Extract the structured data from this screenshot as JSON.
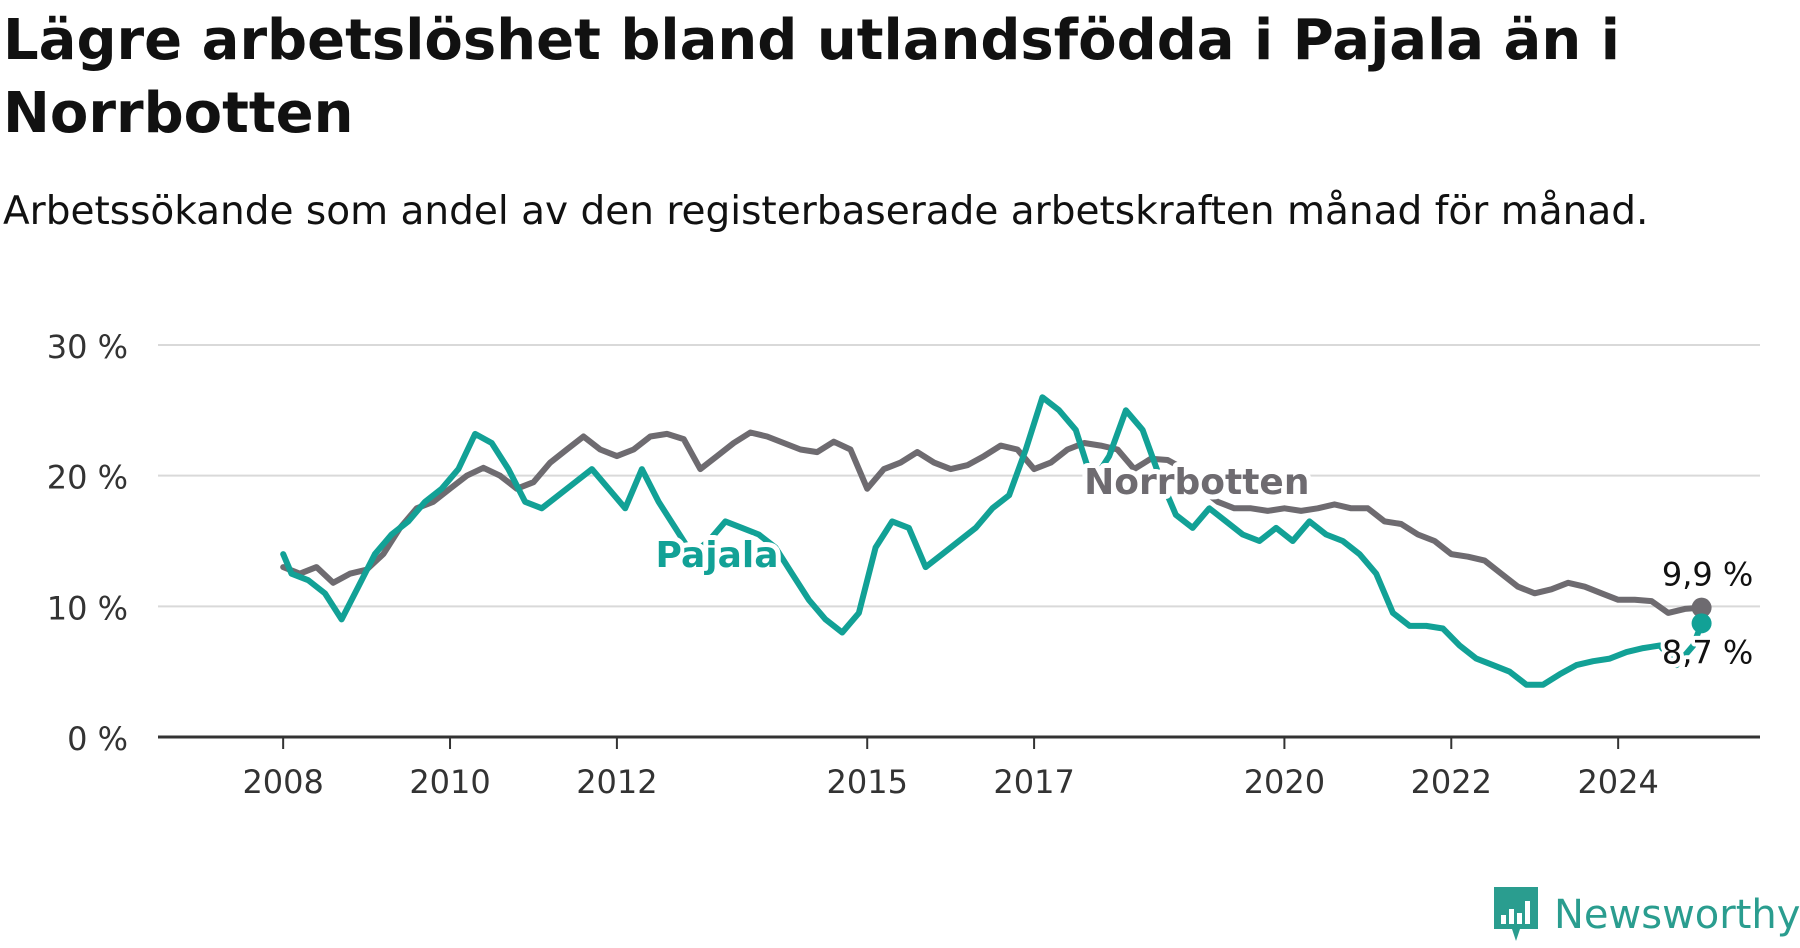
{
  "title": "Lägre arbetslöshet bland utlandsfödda i Pajala än i Norrbotten",
  "subtitle": "Arbetssökande som andel av den registerbaserade arbetskraften månad för månad.",
  "brand": {
    "name": "Newsworthy",
    "icon": "newsworthy-logo-icon",
    "color": "#2a9d8f"
  },
  "chart_data": {
    "type": "line",
    "x_unit": "year",
    "xlim": [
      2006.5,
      2025.7
    ],
    "ylim": [
      0,
      30
    ],
    "y_ticks": [
      0,
      10,
      20,
      30
    ],
    "y_tick_labels": [
      "0 %",
      "10 %",
      "20 %",
      "30 %"
    ],
    "x_ticks": [
      2008,
      2010,
      2012,
      2015,
      2017,
      2020,
      2022,
      2024
    ],
    "x_tick_labels": [
      "2008",
      "2010",
      "2012",
      "2015",
      "2017",
      "2020",
      "2022",
      "2024"
    ],
    "grid": true,
    "series": [
      {
        "name": "Norrbotten",
        "color": "#6e6b70",
        "label_position": [
          2018.95,
          18.6
        ],
        "end_label": "9,9 %",
        "points": [
          [
            2008.0,
            13.0
          ],
          [
            2008.2,
            12.5
          ],
          [
            2008.4,
            13.0
          ],
          [
            2008.6,
            11.8
          ],
          [
            2008.8,
            12.5
          ],
          [
            2009.0,
            12.8
          ],
          [
            2009.2,
            14.0
          ],
          [
            2009.4,
            16.0
          ],
          [
            2009.6,
            17.5
          ],
          [
            2009.8,
            18.0
          ],
          [
            2010.0,
            19.0
          ],
          [
            2010.2,
            20.0
          ],
          [
            2010.4,
            20.6
          ],
          [
            2010.6,
            20.0
          ],
          [
            2010.8,
            19.0
          ],
          [
            2011.0,
            19.5
          ],
          [
            2011.2,
            21.0
          ],
          [
            2011.4,
            22.0
          ],
          [
            2011.6,
            23.0
          ],
          [
            2011.8,
            22.0
          ],
          [
            2012.0,
            21.5
          ],
          [
            2012.2,
            22.0
          ],
          [
            2012.4,
            23.0
          ],
          [
            2012.6,
            23.2
          ],
          [
            2012.8,
            22.8
          ],
          [
            2013.0,
            20.5
          ],
          [
            2013.2,
            21.5
          ],
          [
            2013.4,
            22.5
          ],
          [
            2013.6,
            23.3
          ],
          [
            2013.8,
            23.0
          ],
          [
            2014.0,
            22.5
          ],
          [
            2014.2,
            22.0
          ],
          [
            2014.4,
            21.8
          ],
          [
            2014.6,
            22.6
          ],
          [
            2014.8,
            22.0
          ],
          [
            2015.0,
            19.0
          ],
          [
            2015.2,
            20.5
          ],
          [
            2015.4,
            21.0
          ],
          [
            2015.6,
            21.8
          ],
          [
            2015.8,
            21.0
          ],
          [
            2016.0,
            20.5
          ],
          [
            2016.2,
            20.8
          ],
          [
            2016.4,
            21.5
          ],
          [
            2016.6,
            22.3
          ],
          [
            2016.8,
            22.0
          ],
          [
            2017.0,
            20.5
          ],
          [
            2017.2,
            21.0
          ],
          [
            2017.4,
            22.0
          ],
          [
            2017.6,
            22.5
          ],
          [
            2017.8,
            22.3
          ],
          [
            2018.0,
            22.0
          ],
          [
            2018.2,
            20.5
          ],
          [
            2018.4,
            21.3
          ],
          [
            2018.6,
            21.2
          ],
          [
            2018.8,
            20.5
          ],
          [
            2019.0,
            19.0
          ],
          [
            2019.2,
            18.0
          ],
          [
            2019.4,
            17.5
          ],
          [
            2019.6,
            17.5
          ],
          [
            2019.8,
            17.3
          ],
          [
            2020.0,
            17.5
          ],
          [
            2020.2,
            17.3
          ],
          [
            2020.4,
            17.5
          ],
          [
            2020.6,
            17.8
          ],
          [
            2020.8,
            17.5
          ],
          [
            2021.0,
            17.5
          ],
          [
            2021.2,
            16.5
          ],
          [
            2021.4,
            16.3
          ],
          [
            2021.6,
            15.5
          ],
          [
            2021.8,
            15.0
          ],
          [
            2022.0,
            14.0
          ],
          [
            2022.2,
            13.8
          ],
          [
            2022.4,
            13.5
          ],
          [
            2022.6,
            12.5
          ],
          [
            2022.8,
            11.5
          ],
          [
            2023.0,
            11.0
          ],
          [
            2023.2,
            11.3
          ],
          [
            2023.4,
            11.8
          ],
          [
            2023.6,
            11.5
          ],
          [
            2023.8,
            11.0
          ],
          [
            2024.0,
            10.5
          ],
          [
            2024.2,
            10.5
          ],
          [
            2024.4,
            10.4
          ],
          [
            2024.6,
            9.5
          ],
          [
            2024.8,
            9.8
          ],
          [
            2025.0,
            9.9
          ]
        ]
      },
      {
        "name": "Pajala",
        "color": "#12a196",
        "label_position": [
          2013.2,
          13.0
        ],
        "end_label": "8,7 %",
        "points": [
          [
            2008.0,
            14.0
          ],
          [
            2008.1,
            12.5
          ],
          [
            2008.3,
            12.0
          ],
          [
            2008.5,
            11.0
          ],
          [
            2008.7,
            9.0
          ],
          [
            2008.9,
            11.5
          ],
          [
            2009.1,
            14.0
          ],
          [
            2009.3,
            15.5
          ],
          [
            2009.5,
            16.5
          ],
          [
            2009.7,
            18.0
          ],
          [
            2009.9,
            19.0
          ],
          [
            2010.1,
            20.5
          ],
          [
            2010.3,
            23.2
          ],
          [
            2010.5,
            22.5
          ],
          [
            2010.7,
            20.5
          ],
          [
            2010.9,
            18.0
          ],
          [
            2011.1,
            17.5
          ],
          [
            2011.3,
            18.5
          ],
          [
            2011.5,
            19.5
          ],
          [
            2011.7,
            20.5
          ],
          [
            2011.9,
            19.0
          ],
          [
            2012.1,
            17.5
          ],
          [
            2012.3,
            20.5
          ],
          [
            2012.5,
            18.0
          ],
          [
            2012.7,
            16.0
          ],
          [
            2012.9,
            14.0
          ],
          [
            2013.1,
            15.0
          ],
          [
            2013.3,
            16.5
          ],
          [
            2013.5,
            16.0
          ],
          [
            2013.7,
            15.5
          ],
          [
            2013.9,
            14.5
          ],
          [
            2014.1,
            12.5
          ],
          [
            2014.3,
            10.5
          ],
          [
            2014.5,
            9.0
          ],
          [
            2014.7,
            8.0
          ],
          [
            2014.9,
            9.5
          ],
          [
            2015.1,
            14.5
          ],
          [
            2015.3,
            16.5
          ],
          [
            2015.5,
            16.0
          ],
          [
            2015.7,
            13.0
          ],
          [
            2015.9,
            14.0
          ],
          [
            2016.1,
            15.0
          ],
          [
            2016.3,
            16.0
          ],
          [
            2016.5,
            17.5
          ],
          [
            2016.7,
            18.5
          ],
          [
            2016.9,
            22.0
          ],
          [
            2017.1,
            26.0
          ],
          [
            2017.3,
            25.0
          ],
          [
            2017.5,
            23.5
          ],
          [
            2017.7,
            19.5
          ],
          [
            2017.9,
            21.5
          ],
          [
            2018.1,
            25.0
          ],
          [
            2018.3,
            23.5
          ],
          [
            2018.5,
            20.0
          ],
          [
            2018.7,
            17.0
          ],
          [
            2018.9,
            16.0
          ],
          [
            2019.1,
            17.5
          ],
          [
            2019.3,
            16.5
          ],
          [
            2019.5,
            15.5
          ],
          [
            2019.7,
            15.0
          ],
          [
            2019.9,
            16.0
          ],
          [
            2020.1,
            15.0
          ],
          [
            2020.3,
            16.5
          ],
          [
            2020.5,
            15.5
          ],
          [
            2020.7,
            15.0
          ],
          [
            2020.9,
            14.0
          ],
          [
            2021.1,
            12.5
          ],
          [
            2021.3,
            9.5
          ],
          [
            2021.5,
            8.5
          ],
          [
            2021.7,
            8.5
          ],
          [
            2021.9,
            8.3
          ],
          [
            2022.1,
            7.0
          ],
          [
            2022.3,
            6.0
          ],
          [
            2022.5,
            5.5
          ],
          [
            2022.7,
            5.0
          ],
          [
            2022.9,
            4.0
          ],
          [
            2023.1,
            4.0
          ],
          [
            2023.3,
            4.8
          ],
          [
            2023.5,
            5.5
          ],
          [
            2023.7,
            5.8
          ],
          [
            2023.9,
            6.0
          ],
          [
            2024.1,
            6.5
          ],
          [
            2024.3,
            6.8
          ],
          [
            2024.5,
            7.0
          ],
          [
            2024.7,
            5.5
          ],
          [
            2024.9,
            7.0
          ],
          [
            2025.0,
            8.7
          ]
        ]
      }
    ]
  }
}
